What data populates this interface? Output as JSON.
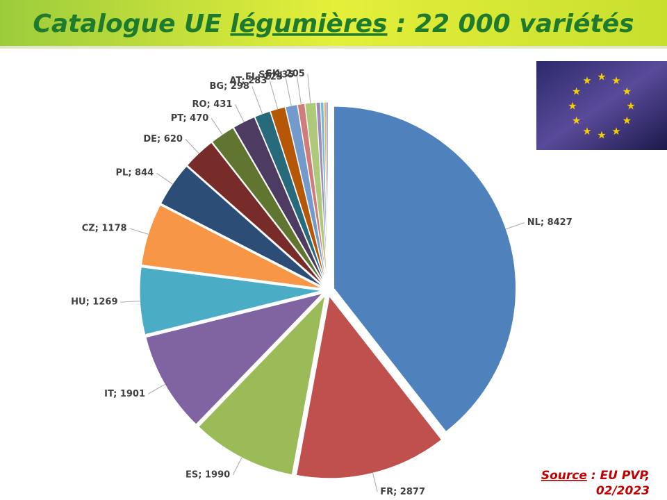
{
  "title": [
    "Catalogue UE ",
    "légumières",
    " : 22 000 variétés"
  ],
  "source": [
    "Source",
    " : EU PVP,",
    "02/2023"
  ],
  "chart_data": {
    "type": "pie",
    "values": [
      8427,
      2877,
      1990,
      1901,
      1269,
      1178,
      844,
      620,
      470,
      431,
      298,
      283,
      223,
      135,
      205,
      80,
      60,
      45,
      30
    ],
    "value_labels": [
      "NL; 8427",
      "FR; 2877",
      "ES; 1990",
      "IT; 1901",
      "HU; 1269",
      "CZ; 1178",
      "PL; 844",
      "DE; 620",
      "PT; 470",
      "RO; 431",
      "BG; 298",
      "AT; 283",
      "EL; 223",
      "SI; 135",
      "SK; 205",
      null,
      null,
      null,
      null
    ],
    "colors": [
      "#4f81bd",
      "#c0504d",
      "#9bbb59",
      "#8064a2",
      "#4bacc6",
      "#f79646",
      "#2c4d75",
      "#772c2a",
      "#5f7530",
      "#4d3b62",
      "#276a7c",
      "#b65708",
      "#729aca",
      "#d07c7a",
      "#afc97a",
      "#a08cbc",
      "#6fbdd1",
      "#f9ab6b",
      "#3a6aa3"
    ]
  }
}
